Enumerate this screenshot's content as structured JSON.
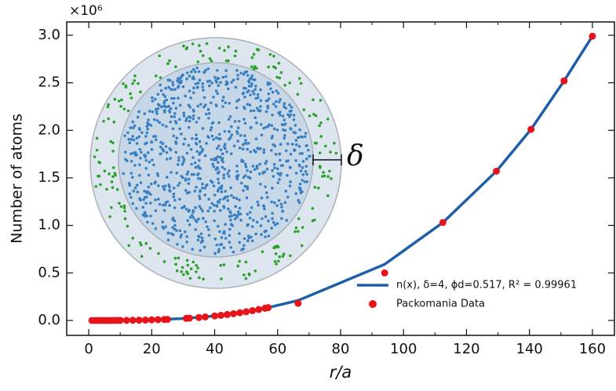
{
  "chart_data": {
    "type": "line_scatter",
    "y_multiplier": "×10⁶",
    "xlabel": "r/a",
    "ylabel": "Number of atoms",
    "inset_label": "δ",
    "xlim": [
      -7,
      167
    ],
    "ylim": [
      -0.157,
      3.14
    ],
    "xticks": [
      0,
      20,
      40,
      60,
      80,
      100,
      120,
      140,
      160
    ],
    "yticks": [
      {
        "value": 0,
        "label": "0.0"
      },
      0.5,
      {
        "value": 1,
        "label": "1.0"
      },
      1.5,
      {
        "value": 2,
        "label": "2.0"
      },
      2.5,
      {
        "value": 3,
        "label": "3.0"
      }
    ],
    "legend_position": "lower right",
    "series": [
      {
        "name": "n(x), δ=4, ϕd=0.517, R² = 0.99961",
        "kind": "line",
        "color": "#1f5fa8",
        "x": [
          1,
          10,
          20,
          30,
          40,
          50,
          57,
          66.5,
          94,
          112.5,
          129.5,
          140.5,
          151,
          160
        ],
        "values": [
          0,
          0.001,
          0.006,
          0.02,
          0.047,
          0.091,
          0.135,
          0.21,
          0.59,
          1.03,
          1.57,
          2.01,
          2.52,
          2.99
        ]
      },
      {
        "name": "Packomania Data",
        "kind": "scatter",
        "color": "#e8141c",
        "x": [
          1,
          2,
          3,
          4,
          5,
          6,
          7,
          8,
          9,
          10,
          12,
          14,
          16,
          18,
          20,
          22,
          24,
          25,
          31,
          32,
          35,
          37,
          40,
          42,
          44,
          46,
          48,
          50,
          52,
          54,
          56,
          57,
          66.5,
          94,
          112.5,
          129.5,
          140.5,
          151,
          160
        ],
        "values": [
          0,
          0,
          0,
          0,
          0,
          0,
          0,
          0,
          0.001,
          0.001,
          0.001,
          0.002,
          0.003,
          0.004,
          0.006,
          0.008,
          0.01,
          0.011,
          0.022,
          0.024,
          0.031,
          0.037,
          0.047,
          0.054,
          0.062,
          0.071,
          0.081,
          0.091,
          0.103,
          0.115,
          0.128,
          0.135,
          0.18,
          0.5,
          1.03,
          1.57,
          2.01,
          2.52,
          2.99
        ]
      }
    ]
  }
}
